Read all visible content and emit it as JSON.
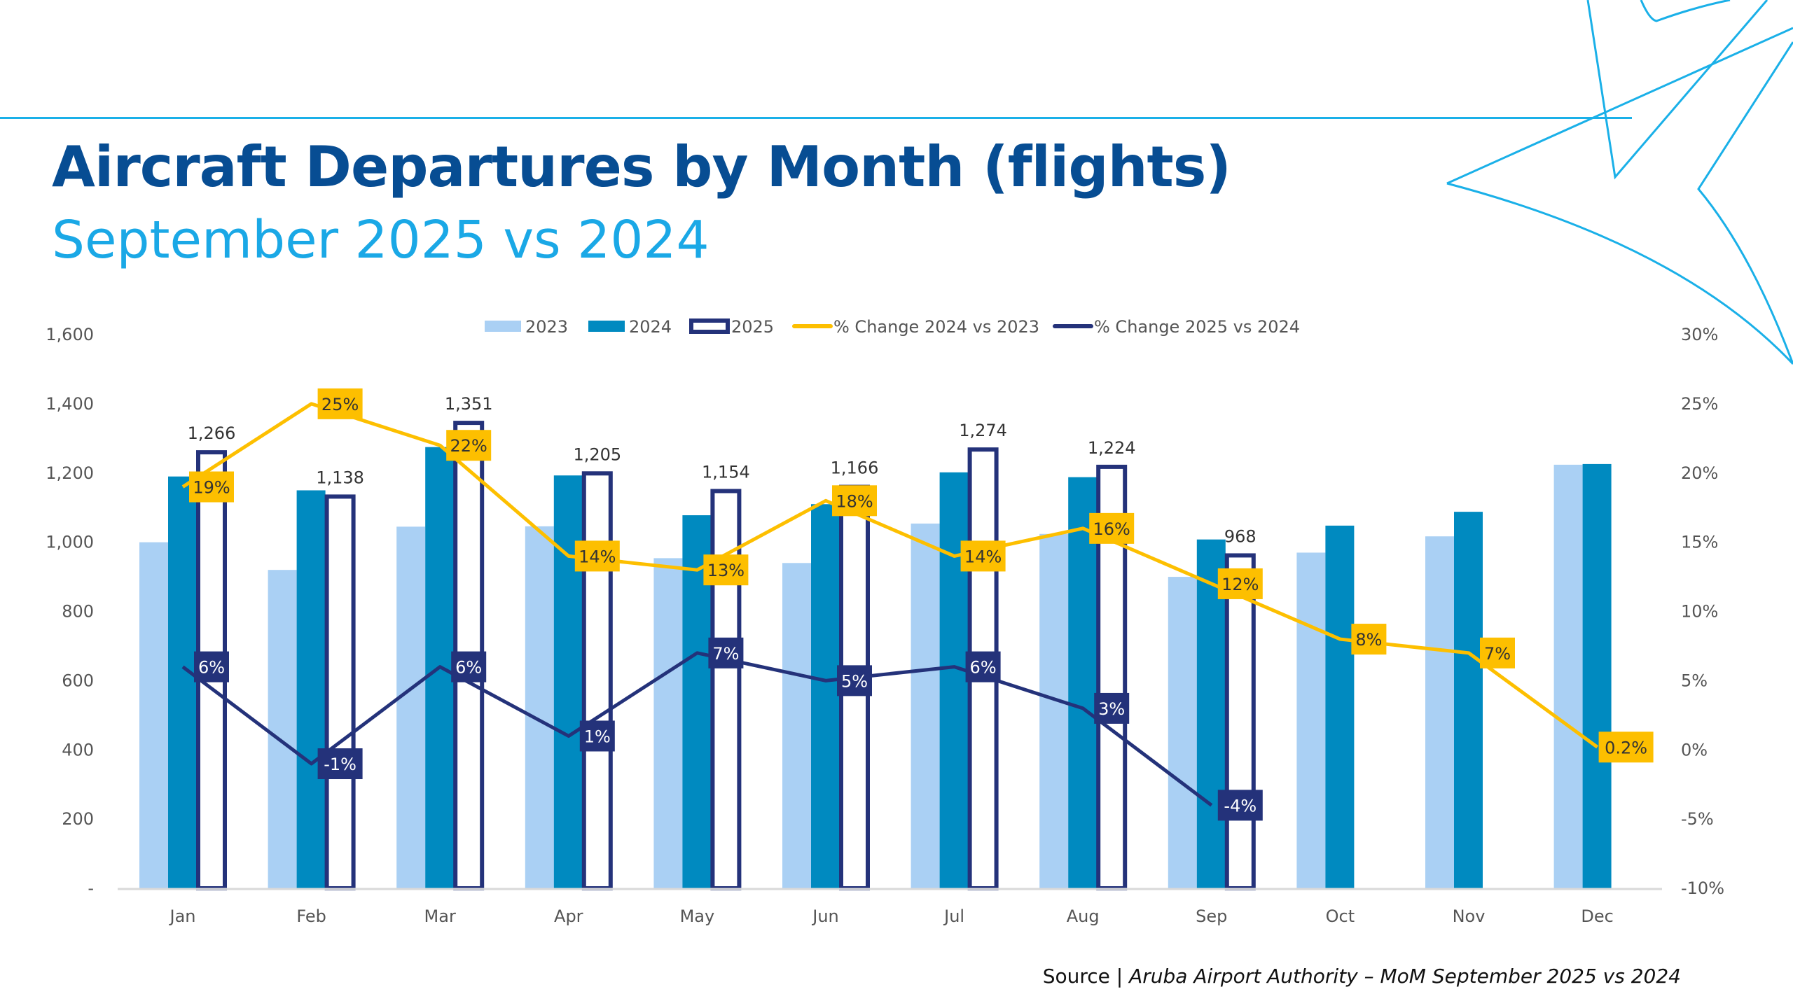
{
  "title": "Aircraft Departures by Month (flights)",
  "subtitle": "September 2025 vs 2024",
  "source_prefix": "Source | ",
  "source_text": "Aruba Airport Authority – MoM September 2025 vs 2024",
  "colors": {
    "title": "#074d93",
    "subtitle": "#1aa8e6",
    "s2023": "#aad0f4",
    "s2024": "#008ac0",
    "s2025": "#24327a",
    "pct2024": "#fdbf00",
    "pct2025": "#24327a",
    "accent": "#1ab0e8"
  },
  "chart_data": {
    "type": "bar",
    "categories": [
      "Jan",
      "Feb",
      "Mar",
      "Apr",
      "May",
      "Jun",
      "Jul",
      "Aug",
      "Sep",
      "Oct",
      "Nov",
      "Dec"
    ],
    "y_left": {
      "range": [
        0,
        1600
      ],
      "ticks": [
        "-",
        "200",
        "400",
        "600",
        "800",
        "1,000",
        "1,200",
        "1,400",
        "1,600"
      ]
    },
    "y_right": {
      "range": [
        -10,
        30
      ],
      "ticks": [
        "-10%",
        "-5%",
        "0%",
        "5%",
        "10%",
        "15%",
        "20%",
        "25%",
        "30%"
      ]
    },
    "legend_position": "top",
    "grid": false,
    "series": [
      {
        "name": "2023",
        "type": "bar",
        "values": [
          1000,
          920,
          1045,
          1046,
          954,
          940,
          1054,
          1024,
          900,
          970,
          1017,
          1224
        ]
      },
      {
        "name": "2024",
        "type": "bar",
        "values": [
          1190,
          1150,
          1275,
          1193,
          1078,
          1110,
          1202,
          1188,
          1008,
          1048,
          1088,
          1226
        ]
      },
      {
        "name": "2025",
        "type": "bar-outline",
        "values": [
          1266,
          1138,
          1351,
          1205,
          1154,
          1166,
          1274,
          1224,
          968,
          null,
          null,
          null
        ],
        "labels": [
          "1,266",
          "1,138",
          "1,351",
          "1,205",
          "1,154",
          "1,166",
          "1,274",
          "1,224",
          "968",
          null,
          null,
          null
        ]
      },
      {
        "name": "% Change 2024 vs 2023",
        "type": "line",
        "axis": "right",
        "values": [
          19,
          25,
          22,
          14,
          13,
          18,
          14,
          16,
          12,
          8,
          7,
          0.2
        ],
        "labels": [
          "19%",
          "25%",
          "22%",
          "14%",
          "13%",
          "18%",
          "14%",
          "16%",
          "12%",
          "8%",
          "7%",
          "0.2%"
        ]
      },
      {
        "name": "% Change 2025 vs 2024",
        "type": "line",
        "axis": "right",
        "values": [
          6,
          -1,
          6,
          1,
          7,
          5,
          6,
          3,
          -4,
          null,
          null,
          null
        ],
        "labels": [
          "6%",
          "-1%",
          "6%",
          "1%",
          "7%",
          "5%",
          "6%",
          "3%",
          "-4%",
          null,
          null,
          null
        ]
      }
    ]
  }
}
